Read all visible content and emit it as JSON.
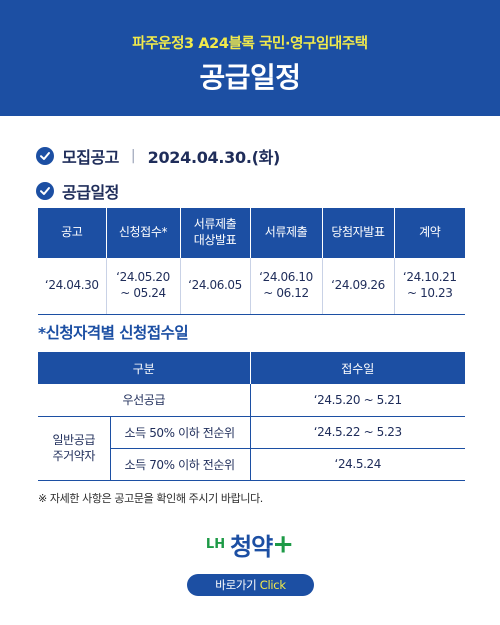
{
  "header": {
    "subtitle": "파주운정3 A24블록 국민·영구임대주택",
    "title": "공급일정"
  },
  "announcement": {
    "label": "모집공고",
    "separator": "|",
    "date": "2024.04.30.(화)"
  },
  "schedule": {
    "label": "공급일정",
    "columns": [
      "공고",
      "신청접수*",
      "서류제출\n대상발표",
      "서류제출",
      "당첨자발표",
      "계약"
    ],
    "values": [
      "‘24.04.30",
      "‘24.05.20\n~ 05.24",
      "‘24.06.05",
      "‘24.06.10\n~ 06.12",
      "‘24.09.26",
      "‘24.10.21\n~ 10.23"
    ]
  },
  "qualification": {
    "title": "*신청자격별 신청접수일",
    "col_category": "구분",
    "col_date": "접수일",
    "priority_label": "우선공급",
    "priority_date": "‘24.5.20 ~ 5.21",
    "general_group": "일반공급\n주거약자",
    "row1_label": "소득 50% 이하 전순위",
    "row1_date": "‘24.5.22 ~ 5.23",
    "row2_label": "소득 70% 이하 전순위",
    "row2_date": "‘24.5.24"
  },
  "note": "※ 자세한 사항은 공고문을 확인해 주시기 바랍니다.",
  "logo": {
    "prefix": "LH",
    "name": "청약",
    "plus": "+"
  },
  "button": {
    "label": "바로가기",
    "accent": "Click"
  },
  "colors": {
    "primary_blue": "#1c4fa3",
    "header_yellow": "#f1ea4b",
    "logo_green": "#1d9a46"
  }
}
